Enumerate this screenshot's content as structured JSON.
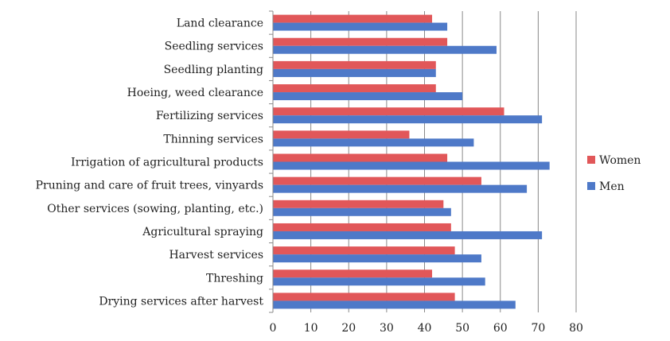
{
  "chart_data": {
    "type": "bar",
    "orientation": "horizontal",
    "categories": [
      "Land clearance",
      "Seedling services",
      "Seedling planting",
      "Hoeing, weed clearance",
      "Fertilizing services",
      "Thinning services",
      "Irrigation of agricultural products",
      "Pruning and care of fruit trees, vinyards",
      "Other services (sowing, planting, etc.)",
      "Agricultural spraying",
      "Harvest services",
      "Threshing",
      "Drying services after harvest"
    ],
    "series": [
      {
        "name": "Women",
        "color": "#e15759",
        "values": [
          42,
          46,
          43,
          43,
          61,
          36,
          46,
          55,
          45,
          47,
          48,
          42,
          48
        ]
      },
      {
        "name": "Men",
        "color": "#4e79c8",
        "values": [
          46,
          59,
          43,
          50,
          71,
          53,
          73,
          67,
          47,
          71,
          55,
          56,
          64
        ]
      }
    ],
    "xlim": [
      0,
      80
    ],
    "xticks": [
      0,
      10,
      20,
      30,
      40,
      50,
      60,
      70,
      80
    ],
    "grid": "vertical major gridlines",
    "legend_position": "right",
    "title": "",
    "xlabel": "",
    "ylabel": ""
  }
}
